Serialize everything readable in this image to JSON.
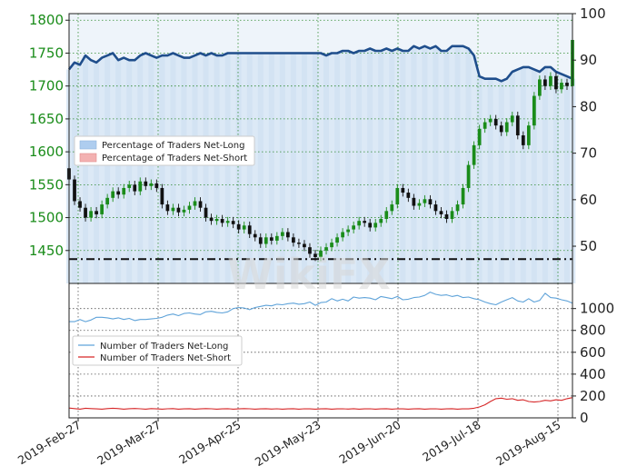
{
  "chart_data": [
    {
      "type": "candlestick",
      "ylim": [
        1400,
        1810
      ],
      "yticks": [
        1450,
        1500,
        1550,
        1600,
        1650,
        1700,
        1750,
        1800
      ],
      "reference_level": 1437,
      "secondary_axis": {
        "ylim": [
          42,
          100
        ],
        "ticks": [
          50,
          60,
          70,
          80,
          90,
          100
        ],
        "series_name": "Percentage of Traders Net-Long",
        "series_color": "#1f4e8c",
        "values": [
          88,
          89.5,
          89,
          91,
          90,
          89.5,
          90.5,
          91,
          91.5,
          90,
          90.5,
          90,
          90,
          91,
          91.5,
          91,
          90.5,
          91,
          91,
          91.5,
          91,
          90.5,
          90.5,
          91,
          91.5,
          91,
          91.5,
          91,
          91,
          91.5,
          91.5,
          91.5,
          91.5,
          91.5,
          91.5,
          91.5,
          91.5,
          91.5,
          91.5,
          91.5,
          91.5,
          91.5,
          91.5,
          91.5,
          91.5,
          91.5,
          91.5,
          91,
          91.5,
          91.5,
          92,
          92,
          91.5,
          92,
          92,
          92.5,
          92,
          92,
          92.5,
          92,
          92.5,
          92,
          92,
          93,
          92.5,
          93,
          92.5,
          93,
          92,
          92,
          93,
          93,
          93,
          92.5,
          91,
          86.5,
          86,
          86,
          86,
          85.5,
          86,
          87.5,
          88,
          88.5,
          88.5,
          88,
          87.5,
          88.5,
          88.5,
          87.5,
          87,
          86.5,
          86
        ]
      },
      "price_candles": [
        [
          1575,
          1558
        ],
        [
          1558,
          1525
        ],
        [
          1525,
          1515
        ],
        [
          1515,
          1500
        ],
        [
          1500,
          1510
        ],
        [
          1510,
          1505
        ],
        [
          1505,
          1520
        ],
        [
          1520,
          1530
        ],
        [
          1530,
          1540
        ],
        [
          1540,
          1535
        ],
        [
          1535,
          1545
        ],
        [
          1545,
          1550
        ],
        [
          1550,
          1540
        ],
        [
          1540,
          1555
        ],
        [
          1555,
          1548
        ],
        [
          1548,
          1552
        ],
        [
          1552,
          1545
        ],
        [
          1545,
          1520
        ],
        [
          1520,
          1510
        ],
        [
          1510,
          1515
        ],
        [
          1515,
          1508
        ],
        [
          1508,
          1512
        ],
        [
          1512,
          1518
        ],
        [
          1518,
          1525
        ],
        [
          1525,
          1515
        ],
        [
          1515,
          1500
        ],
        [
          1500,
          1495
        ],
        [
          1495,
          1498
        ],
        [
          1498,
          1492
        ],
        [
          1492,
          1495
        ],
        [
          1495,
          1490
        ],
        [
          1490,
          1482
        ],
        [
          1482,
          1488
        ],
        [
          1488,
          1475
        ],
        [
          1475,
          1470
        ],
        [
          1470,
          1460
        ],
        [
          1460,
          1470
        ],
        [
          1470,
          1465
        ],
        [
          1465,
          1472
        ],
        [
          1472,
          1478
        ],
        [
          1478,
          1470
        ],
        [
          1470,
          1462
        ],
        [
          1462,
          1460
        ],
        [
          1460,
          1455
        ],
        [
          1455,
          1445
        ],
        [
          1445,
          1440
        ],
        [
          1440,
          1450
        ],
        [
          1450,
          1455
        ],
        [
          1455,
          1462
        ],
        [
          1462,
          1470
        ],
        [
          1470,
          1478
        ],
        [
          1478,
          1482
        ],
        [
          1482,
          1488
        ],
        [
          1488,
          1495
        ],
        [
          1495,
          1492
        ],
        [
          1492,
          1485
        ],
        [
          1485,
          1492
        ],
        [
          1492,
          1498
        ],
        [
          1498,
          1510
        ],
        [
          1510,
          1520
        ],
        [
          1520,
          1545
        ],
        [
          1545,
          1538
        ],
        [
          1538,
          1530
        ],
        [
          1530,
          1518
        ],
        [
          1518,
          1522
        ],
        [
          1522,
          1528
        ],
        [
          1528,
          1520
        ],
        [
          1520,
          1510
        ],
        [
          1510,
          1505
        ],
        [
          1505,
          1498
        ],
        [
          1498,
          1510
        ],
        [
          1510,
          1520
        ],
        [
          1520,
          1545
        ],
        [
          1545,
          1580
        ],
        [
          1580,
          1610
        ],
        [
          1610,
          1635
        ],
        [
          1635,
          1645
        ],
        [
          1645,
          1650
        ],
        [
          1650,
          1640
        ],
        [
          1640,
          1630
        ],
        [
          1630,
          1645
        ],
        [
          1645,
          1655
        ],
        [
          1655,
          1625
        ],
        [
          1625,
          1610
        ],
        [
          1610,
          1640
        ],
        [
          1640,
          1685
        ],
        [
          1685,
          1710
        ],
        [
          1710,
          1700
        ],
        [
          1700,
          1715
        ],
        [
          1715,
          1695
        ],
        [
          1695,
          1705
        ],
        [
          1705,
          1700
        ],
        [
          1700,
          1770
        ]
      ]
    },
    {
      "type": "line",
      "ylim": [
        0,
        1230
      ],
      "yticks": [
        0,
        200,
        400,
        600,
        800,
        1000
      ],
      "series": [
        {
          "name": "Number of Traders Net-Long",
          "color": "#5fa3d9",
          "values": [
            880,
            880,
            900,
            880,
            895,
            920,
            920,
            915,
            905,
            915,
            900,
            910,
            890,
            900,
            900,
            905,
            910,
            920,
            940,
            950,
            935,
            955,
            960,
            950,
            945,
            970,
            975,
            965,
            960,
            970,
            1000,
            1010,
            1005,
            990,
            1010,
            1020,
            1030,
            1025,
            1040,
            1035,
            1045,
            1050,
            1040,
            1045,
            1060,
            1030,
            1055,
            1060,
            1090,
            1070,
            1085,
            1070,
            1105,
            1095,
            1100,
            1095,
            1080,
            1110,
            1100,
            1090,
            1110,
            1080,
            1085,
            1100,
            1105,
            1120,
            1150,
            1130,
            1120,
            1125,
            1110,
            1120,
            1100,
            1105,
            1090,
            1080,
            1060,
            1045,
            1035,
            1060,
            1080,
            1100,
            1070,
            1060,
            1090,
            1060,
            1075,
            1140,
            1100,
            1095,
            1080,
            1070,
            1050
          ]
        },
        {
          "name": "Number of Traders Net-Short",
          "color": "#d62728",
          "values": [
            90,
            85,
            80,
            88,
            85,
            82,
            80,
            85,
            88,
            85,
            80,
            84,
            86,
            83,
            80,
            85,
            82,
            80,
            83,
            85,
            80,
            82,
            84,
            80,
            82,
            85,
            83,
            80,
            82,
            84,
            80,
            82,
            85,
            83,
            80,
            82,
            84,
            81,
            83,
            80,
            82,
            84,
            80,
            83,
            82,
            80,
            82,
            84,
            80,
            82,
            83,
            81,
            84,
            80,
            82,
            83,
            80,
            82,
            84,
            80,
            83,
            82,
            80,
            82,
            84,
            80,
            82,
            83,
            80,
            82,
            84,
            80,
            83,
            82,
            88,
            100,
            120,
            150,
            175,
            180,
            170,
            175,
            160,
            165,
            150,
            145,
            150,
            160,
            155,
            165,
            160,
            175,
            185
          ]
        }
      ]
    }
  ],
  "legend_top": {
    "items": [
      "Percentage of Traders Net-Long",
      "Percentage of Traders Net-Short"
    ],
    "colors": [
      "#aecdef",
      "#f3b1b1"
    ]
  },
  "legend_bottom": {
    "items": [
      "Number of Traders Net-Long",
      "Number of Traders Net-Short"
    ]
  },
  "x_ticks": [
    "2019-Feb-27",
    "2019-Mar-27",
    "2019-Apr-25",
    "2019-May-23",
    "2019-Jun-20",
    "2019-Jul-18",
    "2019-Aug-15"
  ],
  "candle_colors": {
    "up": "#1a8c1a",
    "down": "#111111"
  },
  "watermark": "WikiFX"
}
